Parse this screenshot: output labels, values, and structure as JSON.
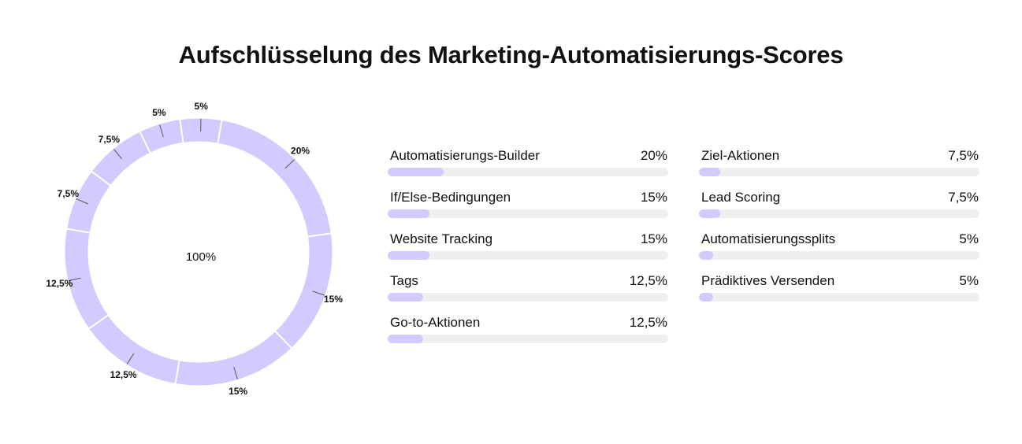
{
  "title": "Aufschlüsselung des Marketing-Automatisierungs-Scores",
  "colors": {
    "accent": "#d4caff",
    "track": "#efefef",
    "separator": "#ffffff",
    "leader": "#555555"
  },
  "chart_data": [
    {
      "type": "pie",
      "variant": "donut",
      "center_label": "100%",
      "slices": [
        {
          "value": 20,
          "label": "20%"
        },
        {
          "value": 15,
          "label": "15%"
        },
        {
          "value": 15,
          "label": "15%"
        },
        {
          "value": 12.5,
          "label": "12,5%"
        },
        {
          "value": 12.5,
          "label": "12,5%"
        },
        {
          "value": 7.5,
          "label": "7,5%"
        },
        {
          "value": 7.5,
          "label": "7,5%"
        },
        {
          "value": 5,
          "label": "5%"
        },
        {
          "value": 5,
          "label": "5%"
        }
      ]
    },
    {
      "type": "bar",
      "orientation": "horizontal",
      "xlim": [
        0,
        100
      ],
      "items": [
        {
          "category": "Automatisierungs-Builder",
          "value": 20,
          "value_label": "20%"
        },
        {
          "category": "If/Else-Bedingungen",
          "value": 15,
          "value_label": "15%"
        },
        {
          "category": "Website Tracking",
          "value": 15,
          "value_label": "15%"
        },
        {
          "category": "Tags",
          "value": 12.5,
          "value_label": "12,5%"
        },
        {
          "category": "Go-to-Aktionen",
          "value": 12.5,
          "value_label": "12,5%"
        },
        {
          "category": "Ziel-Aktionen",
          "value": 7.5,
          "value_label": "7,5%"
        },
        {
          "category": "Lead Scoring",
          "value": 7.5,
          "value_label": "7,5%"
        },
        {
          "category": "Automatisierungssplits",
          "value": 5,
          "value_label": "5%"
        },
        {
          "category": "Prädiktives Versenden",
          "value": 5,
          "value_label": "5%"
        }
      ]
    }
  ]
}
